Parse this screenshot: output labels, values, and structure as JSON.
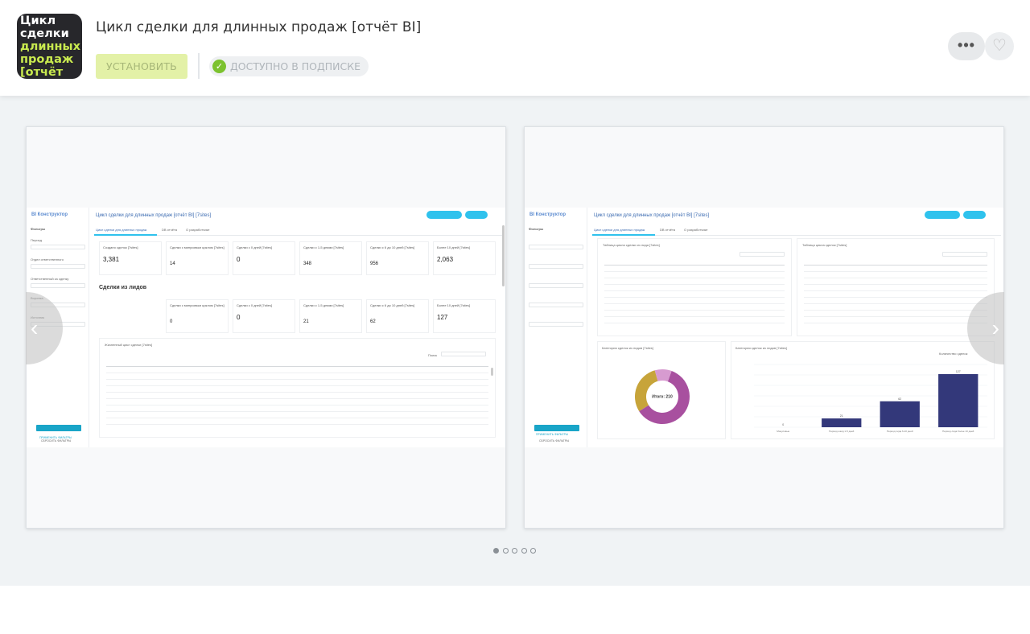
{
  "app": {
    "icon_lines_white": [
      "Цикл",
      "сделки"
    ],
    "icon_lines_green": [
      "длинных",
      "продаж",
      "[отчёт BI]"
    ],
    "title": "Цикл сделки для длинных продаж [отчёт BI]",
    "install_label": "УСТАНОВИТЬ",
    "subscription_label": "ДОСТУПНО В ПОДПИСКЕ",
    "more_label": "•••",
    "fav_icon": "♡"
  },
  "colors": {
    "install_bg": "#e3f1a7",
    "check": "#7cc22f",
    "accent": "#2fc2ed",
    "chart_purple": "#a8509f",
    "chart_gold": "#c7a43a",
    "chart_navy": "#33387a"
  },
  "slide1": {
    "logo": "BI Конструктор",
    "title": "Цикл сделки для длинных продаж [отчёт BI] [7sites]",
    "tabs": [
      "Цикл сделки для длинных продаж",
      "DB отчёта",
      "О разработчике"
    ],
    "sidebar": {
      "heading": "Фильтры",
      "labels": [
        "Период",
        "Отдел ответственного",
        "Ответственный за сделку",
        "Воронка",
        "Источник"
      ],
      "apply": "ПРИМЕНИТЬ ФИЛЬТРЫ",
      "reset": "СБРОСИТЬ ФИЛЬТРЫ"
    },
    "kpi_row1": [
      {
        "title": "Создано сделок [7sites]",
        "value": "3,381"
      },
      {
        "title": "Сделки с минусовым циклом [7sites]",
        "value": "14"
      },
      {
        "title": "Сделки с 0 дней [7sites]",
        "value": "0"
      },
      {
        "title": "Сделки с 1-5 днями [7sites]",
        "value": "348"
      },
      {
        "title": "Сделки с 6 до 10 дней [7sites]",
        "value": "956"
      },
      {
        "title": "Более 10 дней [7sites]",
        "value": "2,063"
      }
    ],
    "section": "Сделки из лидов",
    "kpi_row2": [
      {
        "title": "Сделки с минусовым циклом [7sites]",
        "value": "0"
      },
      {
        "title": "Сделки с 0 дней [7sites]",
        "value": "0"
      },
      {
        "title": "Сделки с 1-5 днями [7sites]",
        "value": "21"
      },
      {
        "title": "Сделки с 6 до 10 дней [7sites]",
        "value": "62"
      },
      {
        "title": "Более 10 дней [7sites]",
        "value": "127"
      }
    ],
    "table_title": "Жизненный цикл сделки [7sites]",
    "search_label": "Поиск"
  },
  "slide2": {
    "logo": "BI Конструктор",
    "title": "Цикл сделки для длинных продаж [отчёт BI] [7sites]",
    "tabs": [
      "Цикл сделки для длинных продаж",
      "DB отчёта",
      "О разработчике"
    ],
    "table_left": "Таблица цикла сделки из лида [7sites]",
    "table_right": "Таблица цикла сделок [7sites]",
    "donut_title": "Категория сделок из лидов [7sites]",
    "donut_center": "Итого: 210",
    "bar_title": "Категория сделок из лидов [7sites]",
    "bar_legend": "Количество сделок",
    "apply": "ПРИМЕНИТЬ ФИЛЬТРЫ",
    "reset": "СБРОСИТЬ ФИЛЬТРЫ"
  },
  "chart_data": {
    "type": "bar",
    "categories": [
      "Минусовые",
      "Период ожид 1-5 дней",
      "Период лида 6-10 дней",
      "Период лида более 10 дней"
    ],
    "values": [
      0,
      21,
      62,
      127
    ],
    "ylim": [
      0,
      150
    ]
  },
  "donut_data": {
    "type": "pie",
    "values": [
      127,
      62,
      21
    ]
  },
  "carousel": {
    "dots": 5,
    "active": 0,
    "prev_icon": "‹",
    "next_icon": "›"
  }
}
